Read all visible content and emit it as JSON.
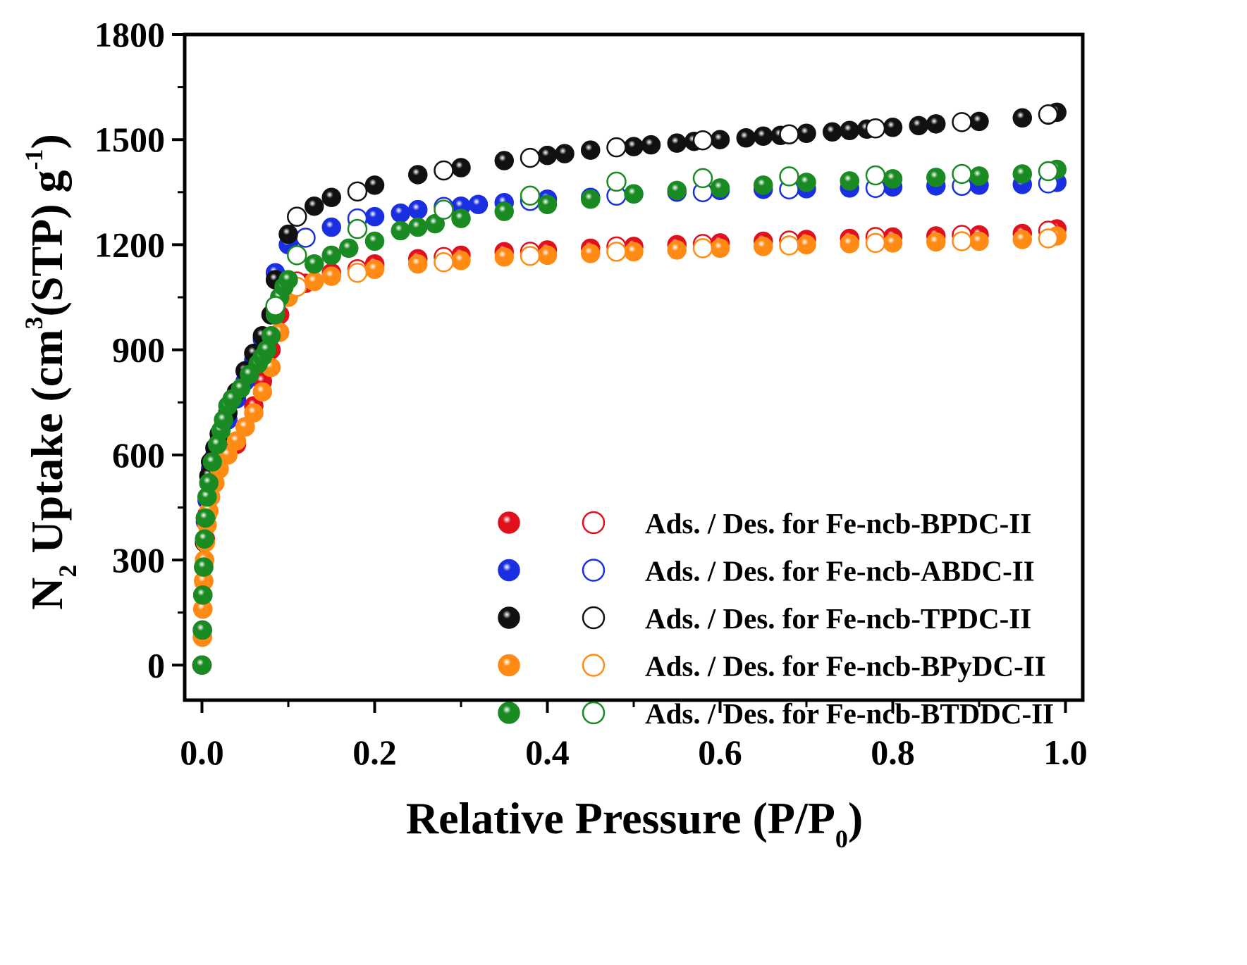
{
  "chart_data": {
    "type": "scatter",
    "title": "",
    "xlabel_main": "Relative Pressure (P/P",
    "xlabel_sub": "0",
    "xlabel_end": ")",
    "ylabel_n": "N",
    "ylabel_n_sub": "2",
    "ylabel_mid": " Uptake (cm",
    "ylabel_sup3": "3",
    "ylabel_mid2": "(STP) g",
    "ylabel_supm1": "-1",
    "ylabel_end": ")",
    "xlim": [
      -0.02,
      1.02
    ],
    "ylim": [
      -100,
      1800
    ],
    "x_ticks": [
      0.0,
      0.2,
      0.4,
      0.6,
      0.8,
      1.0
    ],
    "x_tick_labels": [
      "0.0",
      "0.2",
      "0.4",
      "0.6",
      "0.8",
      "1.0"
    ],
    "y_ticks": [
      0,
      300,
      600,
      900,
      1200,
      1500,
      1800
    ],
    "y_tick_labels": [
      "0",
      "300",
      "600",
      "900",
      "1200",
      "1500",
      "1800"
    ],
    "legend_position": "center-right",
    "series": [
      {
        "name": "Ads. / Des. for Fe-ncb-BPDC-II",
        "color": "#e0101c",
        "ads": [
          [
            0.0,
            0
          ],
          [
            0.0005,
            80
          ],
          [
            0.001,
            160
          ],
          [
            0.002,
            240
          ],
          [
            0.003,
            300
          ],
          [
            0.004,
            360
          ],
          [
            0.006,
            430
          ],
          [
            0.008,
            480
          ],
          [
            0.01,
            520
          ],
          [
            0.015,
            560
          ],
          [
            0.02,
            590
          ],
          [
            0.03,
            610
          ],
          [
            0.04,
            630
          ],
          [
            0.05,
            680
          ],
          [
            0.06,
            740
          ],
          [
            0.07,
            810
          ],
          [
            0.08,
            900
          ],
          [
            0.09,
            1000
          ],
          [
            0.1,
            1060
          ],
          [
            0.12,
            1090
          ],
          [
            0.15,
            1120
          ],
          [
            0.2,
            1145
          ],
          [
            0.25,
            1160
          ],
          [
            0.3,
            1170
          ],
          [
            0.35,
            1180
          ],
          [
            0.4,
            1185
          ],
          [
            0.45,
            1190
          ],
          [
            0.5,
            1195
          ],
          [
            0.55,
            1200
          ],
          [
            0.6,
            1205
          ],
          [
            0.65,
            1210
          ],
          [
            0.7,
            1215
          ],
          [
            0.75,
            1218
          ],
          [
            0.8,
            1222
          ],
          [
            0.85,
            1225
          ],
          [
            0.9,
            1228
          ],
          [
            0.95,
            1232
          ],
          [
            0.99,
            1245
          ]
        ],
        "des": [
          [
            0.98,
            1240
          ],
          [
            0.88,
            1228
          ],
          [
            0.78,
            1222
          ],
          [
            0.68,
            1212
          ],
          [
            0.58,
            1202
          ],
          [
            0.48,
            1195
          ],
          [
            0.38,
            1180
          ],
          [
            0.28,
            1165
          ],
          [
            0.18,
            1130
          ],
          [
            0.11,
            1095
          ]
        ]
      },
      {
        "name": "Ads. / Des. for Fe-ncb-ABDC-II",
        "color": "#1a2fe0",
        "ads": [
          [
            0.0,
            0
          ],
          [
            0.0005,
            100
          ],
          [
            0.001,
            200
          ],
          [
            0.002,
            280
          ],
          [
            0.003,
            350
          ],
          [
            0.004,
            410
          ],
          [
            0.006,
            470
          ],
          [
            0.008,
            520
          ],
          [
            0.01,
            560
          ],
          [
            0.015,
            600
          ],
          [
            0.02,
            640
          ],
          [
            0.03,
            700
          ],
          [
            0.04,
            760
          ],
          [
            0.05,
            810
          ],
          [
            0.06,
            870
          ],
          [
            0.07,
            930
          ],
          [
            0.08,
            1000
          ],
          [
            0.085,
            1120
          ],
          [
            0.1,
            1200
          ],
          [
            0.12,
            1220
          ],
          [
            0.15,
            1250
          ],
          [
            0.18,
            1270
          ],
          [
            0.2,
            1280
          ],
          [
            0.23,
            1290
          ],
          [
            0.25,
            1300
          ],
          [
            0.28,
            1305
          ],
          [
            0.3,
            1310
          ],
          [
            0.32,
            1315
          ],
          [
            0.35,
            1320
          ],
          [
            0.4,
            1330
          ],
          [
            0.45,
            1335
          ],
          [
            0.5,
            1345
          ],
          [
            0.55,
            1350
          ],
          [
            0.6,
            1355
          ],
          [
            0.65,
            1358
          ],
          [
            0.7,
            1360
          ],
          [
            0.75,
            1362
          ],
          [
            0.8,
            1365
          ],
          [
            0.85,
            1368
          ],
          [
            0.9,
            1370
          ],
          [
            0.95,
            1372
          ],
          [
            0.99,
            1378
          ]
        ],
        "des": [
          [
            0.98,
            1375
          ],
          [
            0.88,
            1368
          ],
          [
            0.78,
            1362
          ],
          [
            0.68,
            1358
          ],
          [
            0.58,
            1350
          ],
          [
            0.48,
            1340
          ],
          [
            0.38,
            1325
          ],
          [
            0.28,
            1308
          ],
          [
            0.18,
            1275
          ],
          [
            0.12,
            1220
          ]
        ]
      },
      {
        "name": "Ads. / Des. for Fe-ncb-TPDC-II",
        "color": "#111111",
        "ads": [
          [
            0.0,
            0
          ],
          [
            0.0005,
            100
          ],
          [
            0.001,
            200
          ],
          [
            0.002,
            280
          ],
          [
            0.003,
            350
          ],
          [
            0.004,
            420
          ],
          [
            0.006,
            480
          ],
          [
            0.008,
            540
          ],
          [
            0.01,
            580
          ],
          [
            0.015,
            620
          ],
          [
            0.02,
            660
          ],
          [
            0.03,
            720
          ],
          [
            0.04,
            780
          ],
          [
            0.05,
            840
          ],
          [
            0.06,
            890
          ],
          [
            0.07,
            940
          ],
          [
            0.08,
            1000
          ],
          [
            0.085,
            1100
          ],
          [
            0.1,
            1230
          ],
          [
            0.13,
            1310
          ],
          [
            0.15,
            1335
          ],
          [
            0.2,
            1370
          ],
          [
            0.25,
            1400
          ],
          [
            0.3,
            1420
          ],
          [
            0.35,
            1440
          ],
          [
            0.4,
            1455
          ],
          [
            0.42,
            1460
          ],
          [
            0.45,
            1470
          ],
          [
            0.5,
            1480
          ],
          [
            0.52,
            1485
          ],
          [
            0.55,
            1490
          ],
          [
            0.57,
            1495
          ],
          [
            0.6,
            1500
          ],
          [
            0.63,
            1505
          ],
          [
            0.65,
            1510
          ],
          [
            0.67,
            1512
          ],
          [
            0.7,
            1518
          ],
          [
            0.73,
            1522
          ],
          [
            0.75,
            1526
          ],
          [
            0.77,
            1530
          ],
          [
            0.8,
            1535
          ],
          [
            0.83,
            1540
          ],
          [
            0.85,
            1545
          ],
          [
            0.9,
            1552
          ],
          [
            0.95,
            1562
          ],
          [
            0.98,
            1570
          ],
          [
            0.99,
            1578
          ]
        ],
        "des": [
          [
            0.98,
            1572
          ],
          [
            0.88,
            1550
          ],
          [
            0.78,
            1532
          ],
          [
            0.68,
            1515
          ],
          [
            0.58,
            1498
          ],
          [
            0.48,
            1478
          ],
          [
            0.38,
            1448
          ],
          [
            0.28,
            1412
          ],
          [
            0.18,
            1352
          ],
          [
            0.11,
            1280
          ]
        ]
      },
      {
        "name": "Ads. / Des. for Fe-ncb-BPyDC-II",
        "color": "#ff8a14",
        "ads": [
          [
            0.0,
            0
          ],
          [
            0.0005,
            80
          ],
          [
            0.001,
            160
          ],
          [
            0.002,
            240
          ],
          [
            0.003,
            300
          ],
          [
            0.004,
            350
          ],
          [
            0.006,
            400
          ],
          [
            0.008,
            440
          ],
          [
            0.01,
            480
          ],
          [
            0.015,
            520
          ],
          [
            0.02,
            560
          ],
          [
            0.03,
            600
          ],
          [
            0.04,
            640
          ],
          [
            0.05,
            680
          ],
          [
            0.06,
            720
          ],
          [
            0.07,
            780
          ],
          [
            0.08,
            850
          ],
          [
            0.09,
            950
          ],
          [
            0.1,
            1050
          ],
          [
            0.13,
            1095
          ],
          [
            0.15,
            1110
          ],
          [
            0.2,
            1130
          ],
          [
            0.25,
            1145
          ],
          [
            0.3,
            1155
          ],
          [
            0.35,
            1165
          ],
          [
            0.4,
            1170
          ],
          [
            0.45,
            1175
          ],
          [
            0.5,
            1180
          ],
          [
            0.55,
            1185
          ],
          [
            0.6,
            1190
          ],
          [
            0.65,
            1195
          ],
          [
            0.7,
            1200
          ],
          [
            0.75,
            1203
          ],
          [
            0.8,
            1205
          ],
          [
            0.85,
            1208
          ],
          [
            0.9,
            1210
          ],
          [
            0.95,
            1215
          ],
          [
            0.99,
            1225
          ]
        ],
        "des": [
          [
            0.98,
            1218
          ],
          [
            0.88,
            1210
          ],
          [
            0.78,
            1205
          ],
          [
            0.68,
            1198
          ],
          [
            0.58,
            1190
          ],
          [
            0.48,
            1180
          ],
          [
            0.38,
            1168
          ],
          [
            0.28,
            1150
          ],
          [
            0.18,
            1120
          ],
          [
            0.11,
            1080
          ]
        ]
      },
      {
        "name": "Ads. / Des. for Fe-ncb-BTDDC-II",
        "color": "#1a8a22",
        "ads": [
          [
            0.0,
            0
          ],
          [
            0.0005,
            100
          ],
          [
            0.001,
            200
          ],
          [
            0.002,
            280
          ],
          [
            0.003,
            360
          ],
          [
            0.004,
            420
          ],
          [
            0.006,
            480
          ],
          [
            0.008,
            520
          ],
          [
            0.012,
            580
          ],
          [
            0.018,
            630
          ],
          [
            0.022,
            670
          ],
          [
            0.025,
            700
          ],
          [
            0.03,
            740
          ],
          [
            0.035,
            760
          ],
          [
            0.045,
            790
          ],
          [
            0.055,
            830
          ],
          [
            0.065,
            860
          ],
          [
            0.07,
            880
          ],
          [
            0.075,
            900
          ],
          [
            0.08,
            940
          ],
          [
            0.085,
            1000
          ],
          [
            0.09,
            1050
          ],
          [
            0.095,
            1080
          ],
          [
            0.1,
            1100
          ],
          [
            0.13,
            1145
          ],
          [
            0.15,
            1170
          ],
          [
            0.17,
            1190
          ],
          [
            0.2,
            1210
          ],
          [
            0.23,
            1240
          ],
          [
            0.25,
            1250
          ],
          [
            0.27,
            1260
          ],
          [
            0.3,
            1275
          ],
          [
            0.35,
            1295
          ],
          [
            0.4,
            1315
          ],
          [
            0.45,
            1330
          ],
          [
            0.5,
            1345
          ],
          [
            0.55,
            1355
          ],
          [
            0.6,
            1362
          ],
          [
            0.65,
            1370
          ],
          [
            0.7,
            1378
          ],
          [
            0.75,
            1382
          ],
          [
            0.8,
            1388
          ],
          [
            0.85,
            1392
          ],
          [
            0.9,
            1396
          ],
          [
            0.95,
            1402
          ],
          [
            0.99,
            1415
          ]
        ],
        "des": [
          [
            0.98,
            1410
          ],
          [
            0.88,
            1402
          ],
          [
            0.78,
            1398
          ],
          [
            0.68,
            1395
          ],
          [
            0.58,
            1390
          ],
          [
            0.48,
            1380
          ],
          [
            0.38,
            1340
          ],
          [
            0.28,
            1300
          ],
          [
            0.18,
            1245
          ],
          [
            0.11,
            1170
          ],
          [
            0.085,
            1025
          ]
        ]
      }
    ]
  }
}
